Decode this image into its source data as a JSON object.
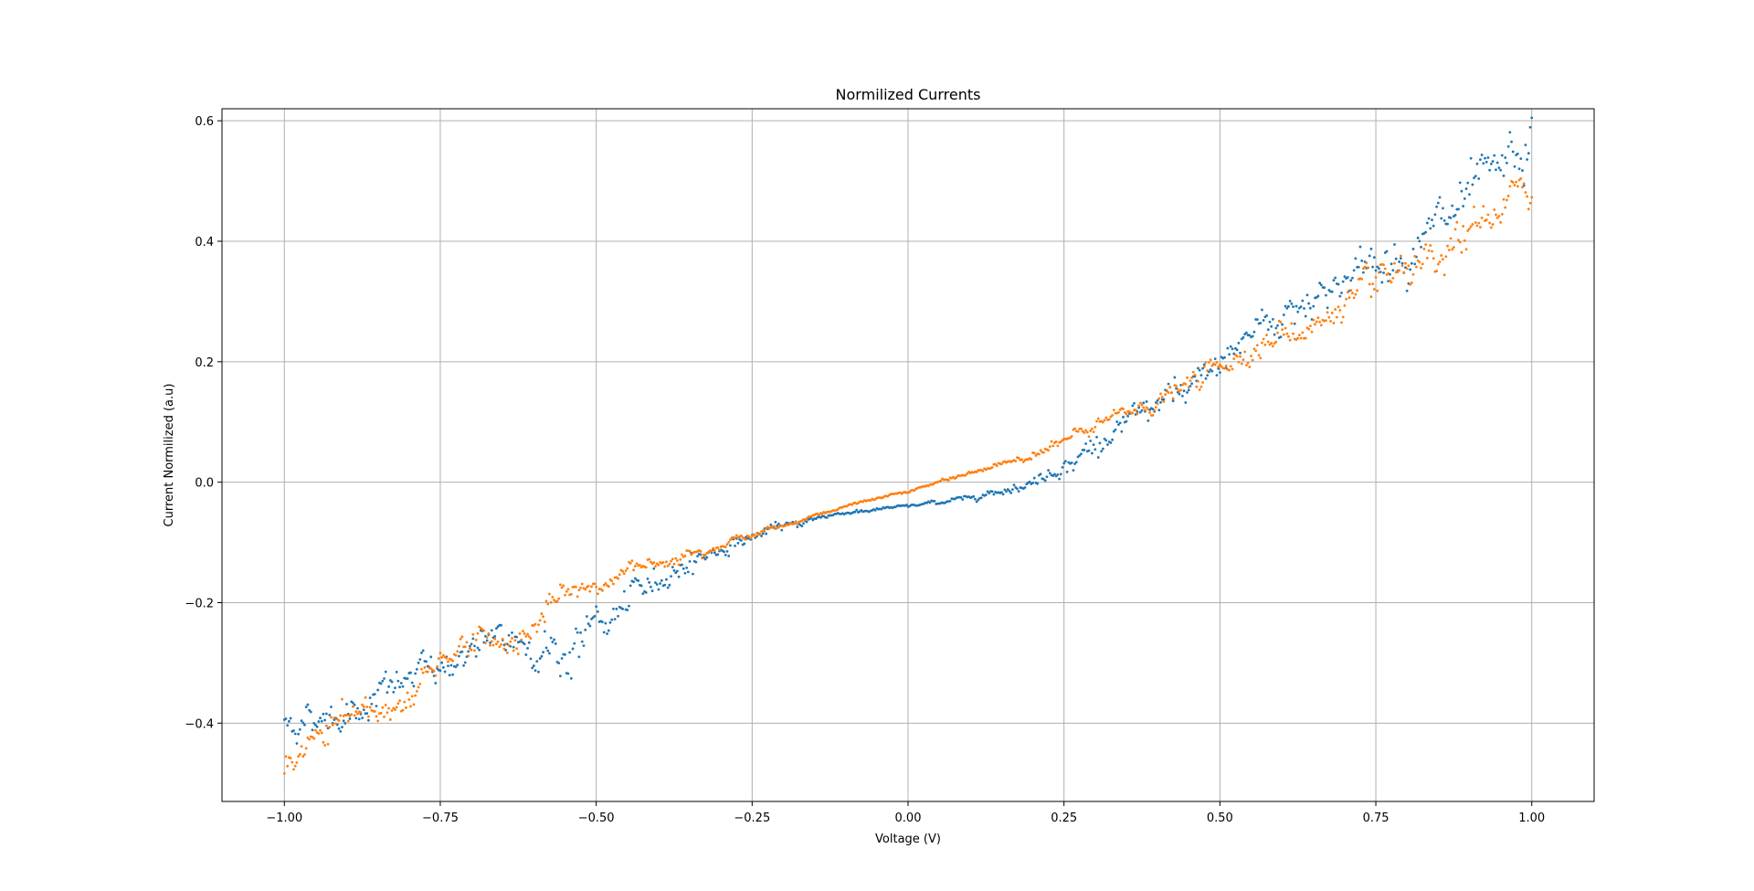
{
  "chart_data": {
    "type": "scatter",
    "title": "Normilized Currents",
    "xlabel": "Voltage (V)",
    "ylabel": "Current Normilized (a.u)",
    "xlim": [
      -1.1,
      1.1
    ],
    "ylim": [
      -0.53,
      0.62
    ],
    "grid": true,
    "legend": "none",
    "xticks": [
      -1.0,
      -0.75,
      -0.5,
      -0.25,
      0.0,
      0.25,
      0.5,
      0.75,
      1.0
    ],
    "xtick_labels": [
      "−1.00",
      "−0.75",
      "−0.50",
      "−0.25",
      "0.00",
      "0.25",
      "0.50",
      "0.75",
      "1.00"
    ],
    "yticks": [
      -0.4,
      -0.2,
      0.0,
      0.2,
      0.4,
      0.6
    ],
    "ytick_labels": [
      "−0.4",
      "−0.2",
      "0.0",
      "0.2",
      "0.4",
      "0.6"
    ],
    "point_count_per_series": 801,
    "series": [
      {
        "color": "#1f77b4",
        "anchors_x": [
          -1.0,
          -0.9,
          -0.8,
          -0.7,
          -0.6,
          -0.55,
          -0.5,
          -0.45,
          -0.4,
          -0.35,
          -0.3,
          -0.25,
          -0.2,
          -0.15,
          -0.1,
          -0.05,
          0.0,
          0.05,
          0.1,
          0.15,
          0.2,
          0.25,
          0.3,
          0.35,
          0.4,
          0.45,
          0.5,
          0.55,
          0.6,
          0.65,
          0.7,
          0.75,
          0.8,
          0.85,
          0.9,
          0.95,
          1.0
        ],
        "anchors_y": [
          -0.4,
          -0.38,
          -0.33,
          -0.28,
          -0.26,
          -0.29,
          -0.24,
          -0.21,
          -0.16,
          -0.13,
          -0.11,
          -0.09,
          -0.075,
          -0.06,
          -0.05,
          -0.045,
          -0.04,
          -0.033,
          -0.025,
          -0.012,
          0.0,
          0.03,
          0.06,
          0.09,
          0.13,
          0.14,
          0.2,
          0.25,
          0.28,
          0.31,
          0.34,
          0.36,
          0.39,
          0.42,
          0.46,
          0.5,
          0.55
        ],
        "noise": [
          0.012,
          0.012,
          0.013,
          0.013,
          0.015,
          0.018,
          0.014,
          0.012,
          0.01,
          0.008,
          0.006,
          0.004,
          0.003,
          0.002,
          0.0015,
          0.0012,
          0.001,
          0.0015,
          0.002,
          0.003,
          0.004,
          0.006,
          0.008,
          0.01,
          0.011,
          0.012,
          0.013,
          0.014,
          0.014,
          0.014,
          0.015,
          0.015,
          0.016,
          0.017,
          0.018,
          0.02,
          0.02
        ]
      },
      {
        "color": "#ff7f0e",
        "anchors_x": [
          -1.0,
          -0.95,
          -0.9,
          -0.85,
          -0.8,
          -0.75,
          -0.7,
          -0.65,
          -0.6,
          -0.55,
          -0.5,
          -0.45,
          -0.4,
          -0.35,
          -0.3,
          -0.25,
          -0.2,
          -0.15,
          -0.1,
          -0.05,
          0.0,
          0.05,
          0.1,
          0.15,
          0.2,
          0.25,
          0.3,
          0.35,
          0.4,
          0.45,
          0.5,
          0.55,
          0.6,
          0.65,
          0.7,
          0.75,
          0.8,
          0.85,
          0.9,
          0.95,
          1.0
        ],
        "anchors_y": [
          -0.47,
          -0.43,
          -0.39,
          -0.38,
          -0.36,
          -0.29,
          -0.26,
          -0.27,
          -0.24,
          -0.19,
          -0.17,
          -0.15,
          -0.13,
          -0.115,
          -0.1,
          -0.088,
          -0.072,
          -0.055,
          -0.04,
          -0.028,
          -0.015,
          0.0,
          0.015,
          0.03,
          0.048,
          0.068,
          0.09,
          0.115,
          0.135,
          0.16,
          0.19,
          0.225,
          0.24,
          0.26,
          0.29,
          0.32,
          0.34,
          0.35,
          0.41,
          0.46,
          0.475
        ],
        "noise": [
          0.012,
          0.012,
          0.011,
          0.011,
          0.012,
          0.01,
          0.009,
          0.009,
          0.01,
          0.009,
          0.007,
          0.006,
          0.005,
          0.004,
          0.003,
          0.002,
          0.0015,
          0.001,
          0.001,
          0.001,
          0.001,
          0.001,
          0.0015,
          0.002,
          0.003,
          0.004,
          0.005,
          0.006,
          0.007,
          0.008,
          0.008,
          0.009,
          0.01,
          0.01,
          0.011,
          0.012,
          0.012,
          0.013,
          0.014,
          0.015,
          0.015
        ]
      }
    ]
  }
}
